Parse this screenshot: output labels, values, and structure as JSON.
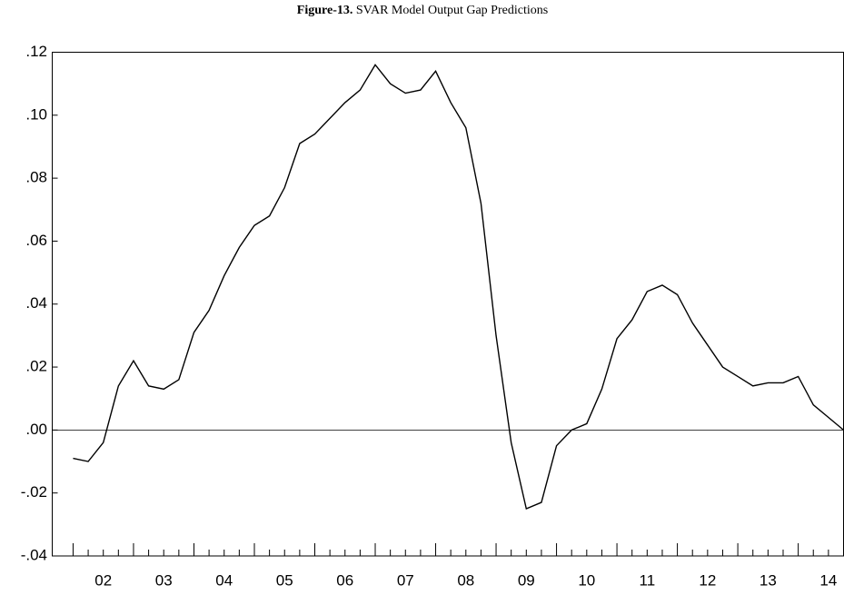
{
  "chart_data": {
    "type": "line",
    "title_label": "Figure-13.",
    "title": "SVAR Model Output Gap Predictions",
    "x": [
      2002.0,
      2002.25,
      2002.5,
      2002.75,
      2003.0,
      2003.25,
      2003.5,
      2003.75,
      2004.0,
      2004.25,
      2004.5,
      2004.75,
      2005.0,
      2005.25,
      2005.5,
      2005.75,
      2006.0,
      2006.25,
      2006.5,
      2006.75,
      2007.0,
      2007.25,
      2007.5,
      2007.75,
      2008.0,
      2008.25,
      2008.5,
      2008.75,
      2009.0,
      2009.25,
      2009.5,
      2009.75,
      2010.0,
      2010.25,
      2010.5,
      2010.75,
      2011.0,
      2011.25,
      2011.5,
      2011.75,
      2012.0,
      2012.25,
      2012.5,
      2012.75,
      2013.0,
      2013.25,
      2013.5,
      2013.75,
      2014.0,
      2014.25,
      2014.5,
      2014.75
    ],
    "values": [
      -0.009,
      -0.01,
      -0.004,
      0.014,
      0.022,
      0.014,
      0.013,
      0.016,
      0.031,
      0.038,
      0.049,
      0.058,
      0.065,
      0.068,
      0.077,
      0.091,
      0.094,
      0.099,
      0.104,
      0.108,
      0.116,
      0.11,
      0.107,
      0.108,
      0.114,
      0.104,
      0.096,
      0.072,
      0.03,
      -0.004,
      -0.025,
      -0.023,
      -0.005,
      0.0,
      0.002,
      0.013,
      0.029,
      0.035,
      0.044,
      0.046,
      0.043,
      0.034,
      0.027,
      0.02,
      0.017,
      0.014,
      0.015,
      0.015,
      0.017,
      0.008,
      0.004,
      0.0
    ],
    "color": "#000000",
    "xlim": [
      2001.655,
      2014.75
    ],
    "xticks": [
      {
        "value": 2002.5,
        "label": "02"
      },
      {
        "value": 2003.5,
        "label": "03"
      },
      {
        "value": 2004.5,
        "label": "04"
      },
      {
        "value": 2005.5,
        "label": "05"
      },
      {
        "value": 2006.5,
        "label": "06"
      },
      {
        "value": 2007.5,
        "label": "07"
      },
      {
        "value": 2008.5,
        "label": "08"
      },
      {
        "value": 2009.5,
        "label": "09"
      },
      {
        "value": 2010.5,
        "label": "10"
      },
      {
        "value": 2011.5,
        "label": "11"
      },
      {
        "value": 2012.5,
        "label": "12"
      },
      {
        "value": 2013.5,
        "label": "13"
      },
      {
        "value": 2014.5,
        "label": "14"
      }
    ],
    "ylim": [
      -0.04,
      0.12
    ],
    "yticks": [
      {
        "value": -0.04,
        "label": "-.04"
      },
      {
        "value": -0.02,
        "label": "-.02"
      },
      {
        "value": 0,
        "label": ".00"
      },
      {
        "value": 0.02,
        "label": ".02"
      },
      {
        "value": 0.04,
        "label": ".04"
      },
      {
        "value": 0.06,
        "label": ".06"
      },
      {
        "value": 0.08,
        "label": ".08"
      },
      {
        "value": 0.1,
        "label": ".10"
      },
      {
        "value": 0.12,
        "label": ".12"
      }
    ],
    "zero_line": true
  }
}
